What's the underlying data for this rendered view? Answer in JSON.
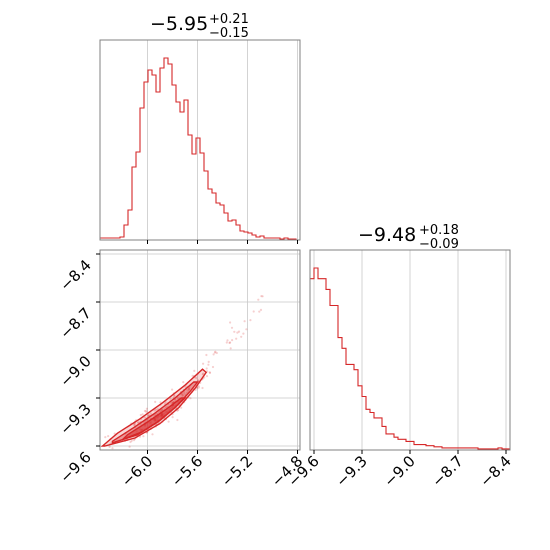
{
  "chart_data": {
    "type": "corner",
    "colors": {
      "accent": "#d62728",
      "grid": "#c8c8c8",
      "frame": "#808080"
    },
    "params": [
      {
        "title_main": "−5.95",
        "title_sup": "+0.21",
        "title_sub": "−0.15",
        "range": [
          -6.38,
          -4.78
        ],
        "ticks": [
          -6.0,
          -5.6,
          -5.2,
          -4.8
        ],
        "tick_labels": [
          "−6.0",
          "−5.6",
          "−5.2",
          "−4.8"
        ]
      },
      {
        "title_main": "−9.48",
        "title_sup": "+0.18",
        "title_sub": "−0.09",
        "range": [
          -9.625,
          -8.375
        ],
        "ticks": [
          -9.6,
          -9.3,
          -9.0,
          -8.7,
          -8.4
        ],
        "tick_labels": [
          "−9.6",
          "−9.3",
          "−9.0",
          "−8.7",
          "−8.4"
        ]
      }
    ],
    "hist_1": {
      "bin_start": -6.38,
      "bin_width": 0.032,
      "counts": [
        2,
        2,
        2,
        2,
        2,
        3,
        15,
        30,
        73,
        88,
        132,
        158,
        170,
        165,
        148,
        172,
        182,
        176,
        155,
        138,
        128,
        140,
        105,
        86,
        102,
        87,
        69,
        51,
        47,
        37,
        35,
        27,
        19,
        20,
        15,
        9,
        8,
        7,
        5,
        3,
        4,
        2,
        2,
        2,
        2,
        1,
        2,
        1,
        1,
        0
      ]
    },
    "hist_2": {
      "bin_start": -9.625,
      "bin_width": 0.025,
      "counts": [
        160,
        170,
        160,
        160,
        150,
        135,
        135,
        105,
        95,
        80,
        80,
        75,
        60,
        50,
        38,
        35,
        30,
        30,
        22,
        15,
        15,
        12,
        10,
        10,
        8,
        8,
        5,
        5,
        5,
        4,
        4,
        3,
        3,
        2,
        2,
        2,
        2,
        2,
        2,
        2,
        2,
        2,
        1,
        1,
        1,
        1,
        1,
        2,
        1,
        1
      ]
    },
    "scatter": {
      "ridge": [
        [
          -6.38,
          -9.62
        ],
        [
          -6.2,
          -9.56
        ],
        [
          -6.0,
          -9.47
        ],
        [
          -5.8,
          -9.36
        ],
        [
          -5.6,
          -9.2
        ],
        [
          -5.4,
          -9.02
        ],
        [
          -5.2,
          -8.84
        ],
        [
          -5.0,
          -8.62
        ]
      ],
      "n_points": 320,
      "seed": 7
    },
    "contours": [
      {
        "level": "outer",
        "points": [
          [
            -6.34,
            -9.6
          ],
          [
            -6.1,
            -9.55
          ],
          [
            -5.9,
            -9.46
          ],
          [
            -5.75,
            -9.36
          ],
          [
            -5.62,
            -9.24
          ],
          [
            -5.53,
            -9.14
          ],
          [
            -5.56,
            -9.12
          ],
          [
            -5.7,
            -9.22
          ],
          [
            -5.88,
            -9.33
          ],
          [
            -6.06,
            -9.43
          ],
          [
            -6.24,
            -9.52
          ],
          [
            -6.36,
            -9.6
          ]
        ]
      },
      {
        "level": "middle",
        "points": [
          [
            -6.28,
            -9.58
          ],
          [
            -6.08,
            -9.53
          ],
          [
            -5.92,
            -9.45
          ],
          [
            -5.78,
            -9.36
          ],
          [
            -5.66,
            -9.26
          ],
          [
            -5.6,
            -9.2
          ],
          [
            -5.63,
            -9.2
          ],
          [
            -5.78,
            -9.3
          ],
          [
            -5.95,
            -9.4
          ],
          [
            -6.12,
            -9.49
          ],
          [
            -6.28,
            -9.57
          ]
        ]
      },
      {
        "level": "inner",
        "points": [
          [
            -6.2,
            -9.56
          ],
          [
            -6.04,
            -9.51
          ],
          [
            -5.9,
            -9.44
          ],
          [
            -5.78,
            -9.36
          ],
          [
            -5.7,
            -9.3
          ],
          [
            -5.73,
            -9.3
          ],
          [
            -5.85,
            -9.37
          ],
          [
            -6.0,
            -9.45
          ],
          [
            -6.16,
            -9.53
          ]
        ]
      }
    ]
  }
}
